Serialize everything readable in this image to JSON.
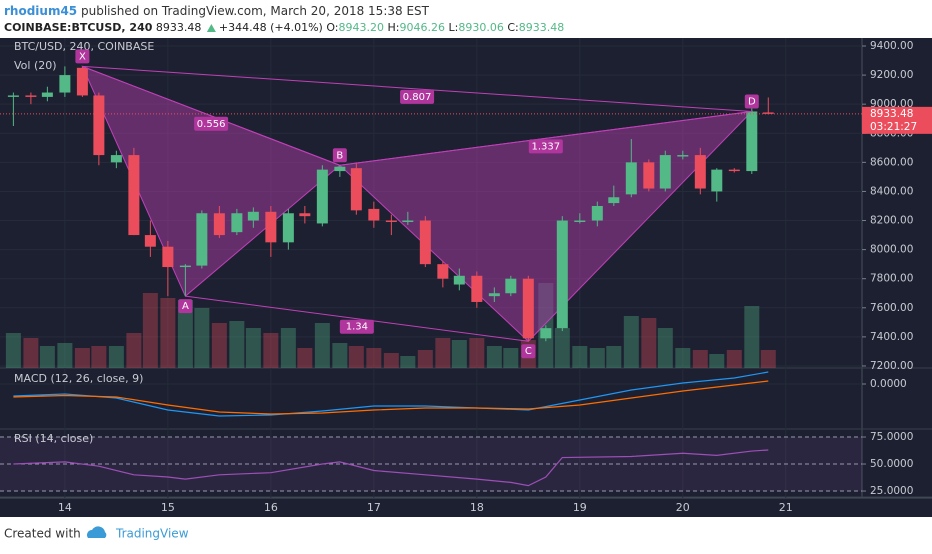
{
  "header": {
    "author": "rhodium45",
    "published": "published on TradingView.com, March 20, 2018 15:38 EST",
    "symbol": "COINBASE:BTCUSD, 240",
    "price": "8933.48",
    "change": "+344.48 (+4.01%)",
    "o_label": "O:",
    "o_value": "8943.20",
    "h_label": "H:",
    "h_value": "9046.26",
    "l_label": "L:",
    "l_value": "8930.06",
    "c_label": "C:",
    "c_value": "8933.48"
  },
  "footer": {
    "created": "Created with",
    "brand": "TradingView"
  },
  "chart_data": [
    {
      "type": "candlestick",
      "title": "BTC/USD, 240, COINBASE",
      "volume_label": "Vol (20)",
      "x": [
        13.5,
        13.67,
        13.83,
        14,
        14.17,
        14.33,
        14.5,
        14.67,
        14.83,
        15,
        15.17,
        15.33,
        15.5,
        15.67,
        15.83,
        16,
        16.17,
        16.33,
        16.5,
        16.67,
        16.83,
        17,
        17.17,
        17.33,
        17.5,
        17.67,
        17.83,
        18,
        18.17,
        18.33,
        18.5,
        18.67,
        18.83,
        19,
        19.17,
        19.33,
        19.5,
        19.67,
        19.83,
        20,
        20.17,
        20.33,
        20.5,
        20.67,
        20.83
      ],
      "open": [
        9050,
        9060,
        9050,
        9080,
        9250,
        9060,
        8600,
        8650,
        8100,
        8020,
        7880,
        7890,
        8250,
        8120,
        8200,
        8260,
        8050,
        8250,
        8180,
        8540,
        8560,
        8280,
        8200,
        8190,
        8200,
        7900,
        7760,
        7820,
        7680,
        7700,
        7800,
        7390,
        7460,
        8190,
        8200,
        8320,
        8380,
        8600,
        8420,
        8640,
        8650,
        8400,
        8550,
        8540,
        8943.2
      ],
      "high": [
        9080,
        9080,
        9120,
        9260,
        9260,
        9080,
        8680,
        8700,
        8200,
        8060,
        7900,
        8270,
        8300,
        8280,
        8290,
        8300,
        8280,
        8300,
        8580,
        8580,
        8600,
        8330,
        8240,
        8260,
        8230,
        7920,
        7870,
        7850,
        7740,
        7820,
        7820,
        7480,
        8230,
        8250,
        8330,
        8440,
        8760,
        8620,
        8680,
        8680,
        8700,
        8560,
        8560,
        9000,
        9046.26
      ],
      "low": [
        8850,
        9000,
        9020,
        9050,
        9050,
        8580,
        8560,
        8100,
        7950,
        7680,
        7680,
        7870,
        8080,
        8100,
        8150,
        7950,
        8000,
        8180,
        8160,
        8500,
        8240,
        8150,
        8100,
        8170,
        7880,
        7740,
        7720,
        7600,
        7640,
        7680,
        7370,
        7370,
        7440,
        8180,
        8160,
        8300,
        8360,
        8400,
        8400,
        8620,
        8380,
        8330,
        8530,
        8520,
        8930.06
      ],
      "close": [
        9060,
        9050,
        9080,
        9200,
        9060,
        8650,
        8650,
        8100,
        8020,
        7880,
        7890,
        8250,
        8100,
        8250,
        8260,
        8050,
        8250,
        8230,
        8550,
        8570,
        8270,
        8200,
        8190,
        8200,
        7900,
        7800,
        7820,
        7640,
        7700,
        7800,
        7390,
        7460,
        8200,
        8200,
        8300,
        8360,
        8600,
        8420,
        8650,
        8650,
        8420,
        8550,
        8540,
        8950,
        8933.48
      ],
      "volume": [
        35,
        30,
        22,
        25,
        20,
        22,
        22,
        35,
        75,
        70,
        68,
        60,
        45,
        47,
        40,
        35,
        40,
        20,
        45,
        25,
        22,
        20,
        15,
        12,
        18,
        30,
        28,
        30,
        22,
        20,
        28,
        85,
        40,
        22,
        20,
        22,
        52,
        50,
        40,
        20,
        18,
        14,
        18,
        62,
        18
      ],
      "volume_ylim": [
        0,
        100
      ],
      "colors": {
        "up": "#53b987",
        "down": "#eb4d5c",
        "pattern": "#a03a9c"
      },
      "xlim": [
        13.37,
        21.74
      ],
      "xticks": [
        14,
        15,
        16,
        17,
        18,
        19,
        20,
        21
      ],
      "ylim": [
        7186,
        9455
      ],
      "yticks": [
        {
          "value": 7200,
          "label": "7200.00"
        },
        {
          "value": 7400,
          "label": "7400.00"
        },
        {
          "value": 7600,
          "label": "7600.00"
        },
        {
          "value": 7800,
          "label": "7800.00"
        },
        {
          "value": 8000,
          "label": "8000.00"
        },
        {
          "value": 8200,
          "label": "8200.00"
        },
        {
          "value": 8400,
          "label": "8400.00"
        },
        {
          "value": 8600,
          "label": "8600.00"
        },
        {
          "value": 8800,
          "label": "8800.00"
        },
        {
          "value": 9000,
          "label": "9000.00"
        },
        {
          "value": 9200,
          "label": "9200.00"
        },
        {
          "value": 9400,
          "label": "9400.00"
        }
      ],
      "last_price": 8933.48,
      "countdown": "03:21:27",
      "pattern": {
        "points": [
          {
            "label": "X",
            "x": 14.17,
            "y": 9260
          },
          {
            "label": "A",
            "x": 15.17,
            "y": 7680
          },
          {
            "label": "B",
            "x": 16.67,
            "y": 8580
          },
          {
            "label": "C",
            "x": 18.5,
            "y": 7370
          },
          {
            "label": "D",
            "x": 20.67,
            "y": 8950
          }
        ],
        "ratios": [
          {
            "from": "X",
            "to": "B",
            "value": 0.556
          },
          {
            "from": "X",
            "to": "D",
            "value": 0.807
          },
          {
            "from": "B",
            "to": "D",
            "value": 1.337
          },
          {
            "from": "A",
            "to": "C",
            "value": 1.34
          }
        ]
      }
    },
    {
      "type": "line",
      "title": "MACD (12, 26, close, 9)",
      "x": [
        13.5,
        14,
        14.5,
        15,
        15.5,
        16,
        16.5,
        17,
        17.5,
        18,
        18.5,
        19,
        19.5,
        20,
        20.5,
        20.83
      ],
      "series": [
        {
          "color": "#2196f3",
          "values": [
            -240,
            -200,
            -280,
            -520,
            -640,
            -620,
            -540,
            -440,
            -440,
            -480,
            -520,
            -320,
            -120,
            20,
            120,
            240
          ]
        },
        {
          "color": "#ff6d00",
          "values": [
            -260,
            -230,
            -260,
            -420,
            -560,
            -600,
            -580,
            -520,
            -480,
            -480,
            -500,
            -420,
            -280,
            -140,
            -20,
            60
          ]
        }
      ],
      "ylim": [
        -880,
        280
      ],
      "yticks": [
        {
          "value": 0,
          "label": "0.0000"
        }
      ]
    },
    {
      "type": "line",
      "title": "RSI (14, close)",
      "x": [
        13.5,
        14,
        14.33,
        14.67,
        15,
        15.17,
        15.5,
        16,
        16.5,
        16.67,
        17,
        17.5,
        18,
        18.33,
        18.5,
        18.67,
        18.83,
        19.5,
        20,
        20.33,
        20.67,
        20.83
      ],
      "series": [
        {
          "color": "#9c4fb6",
          "values": [
            50,
            52,
            48,
            40,
            38,
            36,
            40,
            42,
            50,
            52,
            44,
            40,
            36,
            33,
            30,
            38,
            56,
            57,
            60,
            58,
            62,
            63
          ]
        }
      ],
      "ylim": [
        20.4,
        81.5
      ],
      "yticks": [
        {
          "value": 25,
          "label": "25.0000"
        },
        {
          "value": 50,
          "label": "50.0000"
        },
        {
          "value": 75,
          "label": "75.0000"
        }
      ]
    }
  ]
}
